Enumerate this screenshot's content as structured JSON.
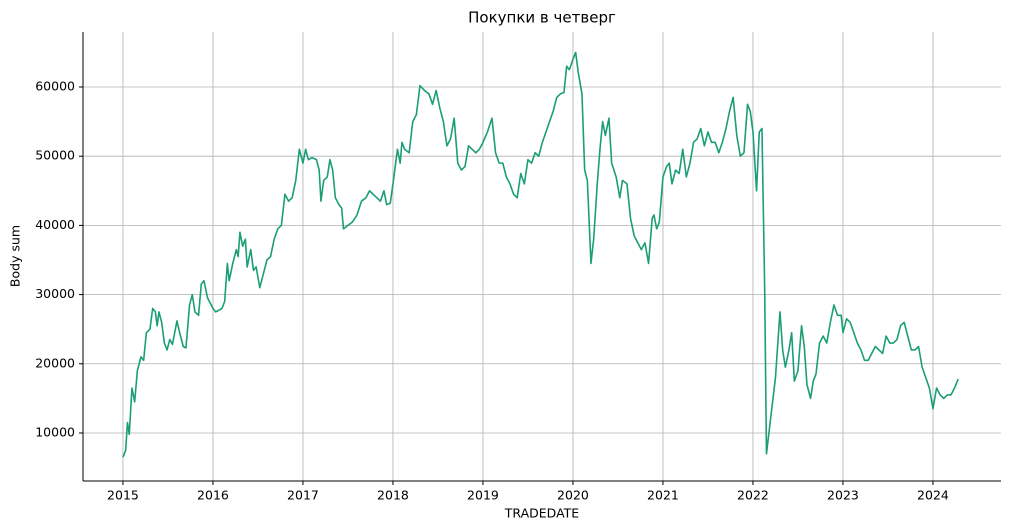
{
  "chart_data": {
    "type": "line",
    "title": "Покупки в четверг",
    "x_label": "TRADEDATE",
    "y_label": "Body sum",
    "color": "#1b9e77",
    "grid": true,
    "xlim": [
      2014.556,
      2024.756
    ],
    "xticks": [
      2015,
      2016,
      2017,
      2018,
      2019,
      2020,
      2021,
      2022,
      2023,
      2024
    ],
    "ylim": [
      3060,
      67950
    ],
    "yticks": [
      10000,
      20000,
      30000,
      40000,
      50000,
      60000
    ],
    "x": [
      2015.0,
      2015.03,
      2015.05,
      2015.07,
      2015.1,
      2015.13,
      2015.16,
      2015.2,
      2015.23,
      2015.26,
      2015.3,
      2015.33,
      2015.36,
      2015.38,
      2015.4,
      2015.43,
      2015.46,
      2015.49,
      2015.52,
      2015.55,
      2015.6,
      2015.63,
      2015.67,
      2015.7,
      2015.74,
      2015.77,
      2015.8,
      2015.84,
      2015.87,
      2015.9,
      2015.94,
      2016.0,
      2016.03,
      2016.06,
      2016.1,
      2016.13,
      2016.16,
      2016.18,
      2016.22,
      2016.26,
      2016.28,
      2016.3,
      2016.33,
      2016.36,
      2016.38,
      2016.42,
      2016.45,
      2016.48,
      2016.52,
      2016.55,
      2016.6,
      2016.64,
      2016.68,
      2016.72,
      2016.76,
      2016.8,
      2016.84,
      2016.88,
      2016.92,
      2016.96,
      2017.0,
      2017.03,
      2017.06,
      2017.1,
      2017.15,
      2017.18,
      2017.2,
      2017.23,
      2017.27,
      2017.3,
      2017.33,
      2017.36,
      2017.4,
      2017.43,
      2017.45,
      2017.5,
      2017.55,
      2017.6,
      2017.65,
      2017.7,
      2017.74,
      2017.78,
      2017.82,
      2017.86,
      2017.9,
      2017.93,
      2017.97,
      2018.0,
      2018.05,
      2018.08,
      2018.1,
      2018.13,
      2018.18,
      2018.22,
      2018.26,
      2018.3,
      2018.35,
      2018.4,
      2018.44,
      2018.48,
      2018.52,
      2018.56,
      2018.6,
      2018.64,
      2018.68,
      2018.72,
      2018.76,
      2018.8,
      2018.84,
      2018.88,
      2018.92,
      2018.96,
      2019.0,
      2019.05,
      2019.1,
      2019.14,
      2019.18,
      2019.22,
      2019.26,
      2019.3,
      2019.34,
      2019.38,
      2019.42,
      2019.46,
      2019.5,
      2019.54,
      2019.58,
      2019.62,
      2019.66,
      2019.7,
      2019.74,
      2019.78,
      2019.82,
      2019.86,
      2019.9,
      2019.93,
      2019.96,
      2020.0,
      2020.03,
      2020.06,
      2020.1,
      2020.13,
      2020.16,
      2020.2,
      2020.23,
      2020.27,
      2020.3,
      2020.33,
      2020.36,
      2020.4,
      2020.43,
      2020.48,
      2020.52,
      2020.55,
      2020.6,
      2020.64,
      2020.68,
      2020.72,
      2020.76,
      2020.8,
      2020.84,
      2020.88,
      2020.9,
      2020.93,
      2020.96,
      2021.0,
      2021.04,
      2021.07,
      2021.1,
      2021.14,
      2021.18,
      2021.22,
      2021.26,
      2021.3,
      2021.34,
      2021.38,
      2021.42,
      2021.46,
      2021.5,
      2021.54,
      2021.58,
      2021.62,
      2021.66,
      2021.7,
      2021.74,
      2021.78,
      2021.82,
      2021.86,
      2021.9,
      2021.94,
      2021.97,
      2022.0,
      2022.04,
      2022.07,
      2022.1,
      2022.13,
      2022.15,
      2022.2,
      2022.25,
      2022.3,
      2022.33,
      2022.36,
      2022.4,
      2022.43,
      2022.46,
      2022.5,
      2022.54,
      2022.57,
      2022.6,
      2022.64,
      2022.67,
      2022.7,
      2022.74,
      2022.78,
      2022.82,
      2022.86,
      2022.9,
      2022.94,
      2022.98,
      2023.0,
      2023.04,
      2023.08,
      2023.12,
      2023.16,
      2023.2,
      2023.24,
      2023.28,
      2023.32,
      2023.36,
      2023.4,
      2023.44,
      2023.48,
      2023.52,
      2023.56,
      2023.6,
      2023.64,
      2023.68,
      2023.72,
      2023.76,
      2023.8,
      2023.84,
      2023.88,
      2023.92,
      2023.96,
      2024.0,
      2024.04,
      2024.08,
      2024.12,
      2024.16,
      2024.2,
      2024.24,
      2024.28
    ],
    "values": [
      6500,
      7500,
      11500,
      9800,
      16500,
      14500,
      19000,
      21000,
      20500,
      24500,
      25000,
      28000,
      27500,
      25500,
      27500,
      26000,
      23000,
      22000,
      23500,
      22800,
      26200,
      24500,
      22500,
      22300,
      28500,
      30000,
      27500,
      27000,
      31500,
      32000,
      29500,
      28000,
      27500,
      27700,
      28000,
      29000,
      34500,
      32000,
      34500,
      36500,
      35500,
      39000,
      37000,
      38000,
      34000,
      36500,
      33500,
      34000,
      31000,
      32500,
      35000,
      35500,
      38000,
      39500,
      40000,
      44500,
      43500,
      44000,
      46500,
      51000,
      49000,
      51000,
      49500,
      49800,
      49500,
      48000,
      43500,
      46500,
      47000,
      49500,
      48000,
      44000,
      43000,
      42500,
      39500,
      40000,
      40500,
      41500,
      43500,
      44000,
      45000,
      44500,
      44000,
      43500,
      45000,
      43000,
      43200,
      46000,
      51000,
      49000,
      52000,
      51000,
      50500,
      55000,
      56000,
      60200,
      59500,
      59000,
      57500,
      59500,
      57000,
      55000,
      51500,
      52500,
      55500,
      49000,
      48000,
      48500,
      51500,
      51000,
      50500,
      51000,
      52000,
      53500,
      55500,
      50500,
      49000,
      49000,
      47000,
      46000,
      44500,
      44000,
      47500,
      46000,
      49500,
      49000,
      50500,
      50000,
      52000,
      53500,
      55000,
      56500,
      58500,
      59000,
      59200,
      63000,
      62500,
      64000,
      65000,
      62000,
      59000,
      48000,
      46500,
      34500,
      38000,
      46000,
      51000,
      55000,
      53000,
      55500,
      49000,
      47000,
      44000,
      46500,
      46000,
      41000,
      38500,
      37500,
      36500,
      37500,
      34500,
      41000,
      41500,
      39500,
      40500,
      47000,
      48500,
      49000,
      46000,
      48000,
      47500,
      51000,
      47000,
      49000,
      52000,
      52500,
      54000,
      51500,
      53500,
      52000,
      52000,
      50500,
      52000,
      54000,
      56500,
      58500,
      53000,
      50000,
      50500,
      57500,
      56500,
      53500,
      45000,
      53500,
      54000,
      31000,
      7000,
      12500,
      18000,
      27500,
      22000,
      19500,
      22000,
      24500,
      17500,
      19000,
      25500,
      22500,
      17000,
      15000,
      17500,
      18500,
      23000,
      24000,
      23000,
      26000,
      28500,
      27000,
      27000,
      24500,
      26500,
      26000,
      24500,
      23000,
      22000,
      20500,
      20500,
      21500,
      22500,
      22000,
      21500,
      24000,
      23000,
      23000,
      23500,
      25500,
      26000,
      24000,
      22000,
      22000,
      22500,
      19500,
      18000,
      16500,
      13500,
      16500,
      15500,
      15000,
      15500,
      15500,
      16500,
      17800
    ]
  }
}
